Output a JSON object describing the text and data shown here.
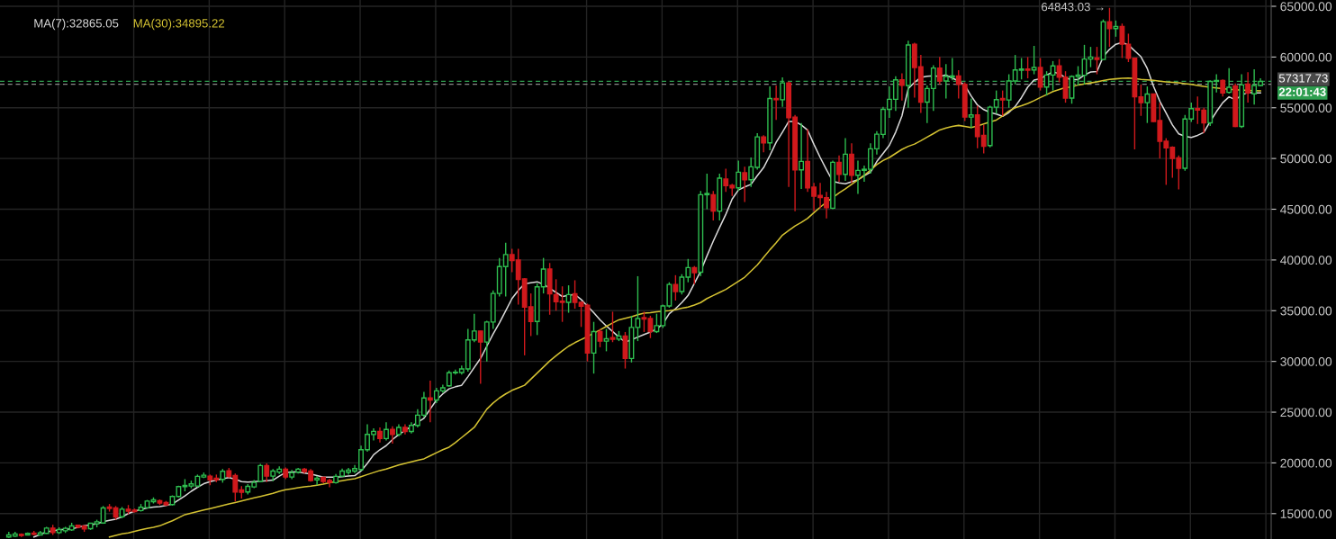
{
  "chart_data": {
    "type": "candlestick",
    "categories": [
      null,
      null,
      null,
      null,
      null,
      null,
      null,
      null,
      null,
      null,
      null,
      null,
      null,
      null,
      null,
      null,
      null,
      null,
      null,
      null,
      null,
      null,
      null,
      null,
      null,
      null,
      null,
      null,
      null,
      null,
      null,
      null,
      null,
      null,
      null,
      null,
      null,
      null,
      null,
      null,
      null,
      null,
      null,
      null,
      null,
      null,
      null,
      null,
      null,
      null,
      null,
      null,
      null,
      null,
      null,
      null,
      null,
      null,
      null,
      null,
      null,
      null,
      null,
      null,
      null,
      null,
      null,
      null,
      null,
      null,
      null,
      null,
      null,
      null,
      null,
      null,
      null,
      null,
      null,
      null,
      null,
      null,
      null,
      null,
      null,
      null,
      null,
      null,
      null,
      null,
      null,
      null,
      null,
      null,
      null,
      null,
      null,
      null,
      null,
      null,
      null,
      null,
      null,
      null,
      null,
      null,
      null,
      null,
      null,
      null,
      null,
      null,
      null,
      null,
      null,
      null,
      null,
      null,
      null,
      null,
      null,
      null,
      null,
      null,
      null,
      null,
      null,
      null,
      null,
      null,
      null,
      null,
      null,
      null,
      null,
      null,
      null,
      null,
      null,
      null,
      null,
      null,
      null,
      null,
      null,
      null,
      null,
      null,
      null,
      null,
      null,
      null,
      null,
      null,
      null,
      null,
      null,
      null,
      null,
      null,
      null,
      null,
      null,
      null,
      null,
      null,
      null,
      null,
      null,
      null,
      null,
      null,
      null,
      null,
      null,
      null,
      null,
      null,
      null,
      null,
      null,
      null,
      null,
      null,
      null,
      null,
      null,
      null,
      null,
      null,
      null,
      null,
      null,
      null,
      null,
      null,
      null,
      null,
      null,
      null
    ],
    "ohlc": [
      [
        12700,
        13200,
        12600,
        12900
      ],
      [
        12780,
        13200,
        12700,
        12990
      ],
      [
        12960,
        13050,
        12700,
        12840
      ],
      [
        12900,
        13150,
        12850,
        13050
      ],
      [
        13080,
        13300,
        12850,
        12960
      ],
      [
        12900,
        13300,
        12850,
        13100
      ],
      [
        13050,
        13700,
        13000,
        13580
      ],
      [
        13580,
        13900,
        12900,
        13130
      ],
      [
        13130,
        13650,
        13000,
        13430
      ],
      [
        13310,
        13700,
        13100,
        13550
      ],
      [
        13400,
        14100,
        13300,
        13790
      ],
      [
        13850,
        13900,
        13550,
        13670
      ],
      [
        13790,
        13820,
        13200,
        13490
      ],
      [
        13520,
        14100,
        13400,
        14050
      ],
      [
        14000,
        14400,
        13650,
        14200
      ],
      [
        14080,
        15750,
        14000,
        15560
      ],
      [
        15650,
        15950,
        15200,
        15500
      ],
      [
        15560,
        15750,
        14400,
        14670
      ],
      [
        14700,
        15650,
        14550,
        15440
      ],
      [
        15440,
        15850,
        14950,
        15240
      ],
      [
        15350,
        15500,
        15100,
        15200
      ],
      [
        15300,
        15950,
        15200,
        15620
      ],
      [
        15590,
        16350,
        15500,
        16240
      ],
      [
        16180,
        16600,
        16000,
        16360
      ],
      [
        16270,
        16400,
        15850,
        16040
      ],
      [
        16100,
        16250,
        15750,
        15860
      ],
      [
        15890,
        16800,
        15800,
        16690
      ],
      [
        16690,
        17750,
        16600,
        17660
      ],
      [
        17660,
        18400,
        17200,
        17780
      ],
      [
        17720,
        18250,
        17500,
        17930
      ],
      [
        17720,
        18850,
        17600,
        18670
      ],
      [
        18610,
        19050,
        18500,
        18790
      ],
      [
        18700,
        18850,
        17800,
        18320
      ],
      [
        18490,
        18850,
        18100,
        18320
      ],
      [
        18380,
        19400,
        18050,
        19170
      ],
      [
        19230,
        19500,
        18500,
        18670
      ],
      [
        18760,
        18950,
        16200,
        17130
      ],
      [
        17340,
        17700,
        16500,
        17100
      ],
      [
        17130,
        17900,
        16900,
        17690
      ],
      [
        17630,
        18300,
        17500,
        18080
      ],
      [
        18170,
        19900,
        18100,
        19740
      ],
      [
        19740,
        19950,
        18100,
        18700
      ],
      [
        18700,
        19400,
        18200,
        19200
      ],
      [
        19100,
        19650,
        18900,
        19380
      ],
      [
        19380,
        19550,
        18400,
        18610
      ],
      [
        18610,
        19300,
        18400,
        19030
      ],
      [
        19100,
        19500,
        18950,
        19380
      ],
      [
        19380,
        19500,
        18950,
        19140
      ],
      [
        19200,
        19400,
        18150,
        18260
      ],
      [
        18320,
        18700,
        17800,
        18490
      ],
      [
        18580,
        18650,
        18000,
        18170
      ],
      [
        18260,
        18450,
        17600,
        18080
      ],
      [
        18050,
        18900,
        17950,
        18670
      ],
      [
        18700,
        19450,
        18600,
        19200
      ],
      [
        19080,
        19500,
        18850,
        19290
      ],
      [
        19200,
        19800,
        19000,
        19440
      ],
      [
        19350,
        21700,
        19200,
        21300
      ],
      [
        21300,
        23800,
        21100,
        22810
      ],
      [
        22800,
        23400,
        22200,
        23110
      ],
      [
        23110,
        23500,
        22000,
        22400
      ],
      [
        22400,
        24000,
        22200,
        23300
      ],
      [
        23300,
        23600,
        21900,
        22800
      ],
      [
        22800,
        23800,
        22600,
        23500
      ],
      [
        23500,
        23800,
        22800,
        23100
      ],
      [
        23100,
        24000,
        22900,
        23700
      ],
      [
        23700,
        25300,
        23500,
        24700
      ],
      [
        24700,
        27000,
        24500,
        26400
      ],
      [
        26400,
        28100,
        24000,
        26200
      ],
      [
        26200,
        27400,
        25900,
        27100
      ],
      [
        27100,
        27700,
        26900,
        27400
      ],
      [
        27600,
        29100,
        27500,
        28880
      ],
      [
        28880,
        29200,
        28700,
        28940
      ],
      [
        28910,
        29600,
        28700,
        29260
      ],
      [
        29260,
        33200,
        29000,
        32120
      ],
      [
        32120,
        34700,
        31900,
        33000
      ],
      [
        33000,
        33000,
        27800,
        31910
      ],
      [
        31910,
        34000,
        30000,
        33880
      ],
      [
        33880,
        37000,
        33200,
        36700
      ],
      [
        36700,
        40200,
        36400,
        39350
      ],
      [
        39350,
        41700,
        36400,
        40530
      ],
      [
        40530,
        41100,
        38800,
        39940
      ],
      [
        40000,
        41100,
        35600,
        38090
      ],
      [
        38140,
        38200,
        30600,
        35350
      ],
      [
        35380,
        36700,
        32500,
        33940
      ],
      [
        33940,
        37700,
        32600,
        37350
      ],
      [
        37350,
        40200,
        36700,
        39110
      ],
      [
        39110,
        39700,
        34600,
        36670
      ],
      [
        36590,
        38100,
        35000,
        35880
      ],
      [
        35940,
        37400,
        33900,
        35820
      ],
      [
        35820,
        37500,
        34800,
        36590
      ],
      [
        36670,
        38000,
        35200,
        35820
      ],
      [
        35820,
        35900,
        33400,
        35440
      ],
      [
        35530,
        35700,
        30000,
        30820
      ],
      [
        30820,
        33900,
        28800,
        32940
      ],
      [
        32940,
        33200,
        31400,
        32000
      ],
      [
        32000,
        33200,
        31000,
        32230
      ],
      [
        32350,
        34900,
        31900,
        32180
      ],
      [
        32200,
        33000,
        32000,
        32500
      ],
      [
        32500,
        32900,
        29300,
        30290
      ],
      [
        30290,
        34500,
        29900,
        33350
      ],
      [
        33350,
        38400,
        32000,
        34230
      ],
      [
        34320,
        34900,
        32900,
        34170
      ],
      [
        34230,
        34500,
        32300,
        32940
      ],
      [
        32940,
        34700,
        32800,
        33530
      ],
      [
        33530,
        35600,
        33300,
        35470
      ],
      [
        35470,
        37800,
        35300,
        37590
      ],
      [
        37590,
        38500,
        36000,
        36890
      ],
      [
        36890,
        38600,
        36600,
        38310
      ],
      [
        38310,
        40100,
        37800,
        39250
      ],
      [
        39250,
        39400,
        37600,
        38750
      ],
      [
        38800,
        46800,
        38400,
        46430
      ],
      [
        46430,
        48500,
        45000,
        46550
      ],
      [
        46430,
        46800,
        43900,
        44810
      ],
      [
        44810,
        48500,
        43900,
        48060
      ],
      [
        47970,
        49000,
        46700,
        47320
      ],
      [
        47350,
        47500,
        46300,
        47110
      ],
      [
        47110,
        49800,
        46800,
        48650
      ],
      [
        48590,
        49200,
        45700,
        47910
      ],
      [
        47910,
        50100,
        47200,
        49180
      ],
      [
        49120,
        52500,
        48900,
        52130
      ],
      [
        52130,
        52300,
        50600,
        51540
      ],
      [
        51540,
        57100,
        50800,
        55910
      ],
      [
        55910,
        57200,
        53800,
        55790
      ],
      [
        55790,
        58000,
        55100,
        57450
      ],
      [
        57450,
        57600,
        47200,
        54020
      ],
      [
        54080,
        54300,
        44800,
        48880
      ],
      [
        48880,
        53500,
        47000,
        49710
      ],
      [
        49710,
        52900,
        46700,
        47110
      ],
      [
        47170,
        47600,
        44800,
        46280
      ],
      [
        46370,
        47600,
        45100,
        46140
      ],
      [
        46140,
        46700,
        44100,
        45160
      ],
      [
        45100,
        49800,
        45000,
        49620
      ],
      [
        49620,
        50300,
        47700,
        48440
      ],
      [
        48440,
        52000,
        47800,
        50420
      ],
      [
        50420,
        51500,
        47600,
        48350
      ],
      [
        48350,
        49800,
        46500,
        48830
      ],
      [
        48830,
        49300,
        47700,
        48940
      ],
      [
        48940,
        51500,
        48500,
        50950
      ],
      [
        50950,
        52700,
        50400,
        52400
      ],
      [
        52370,
        55100,
        52000,
        54850
      ],
      [
        54850,
        57100,
        54000,
        55830
      ],
      [
        55830,
        58100,
        54700,
        57750
      ],
      [
        57750,
        58400,
        55700,
        57210
      ],
      [
        57190,
        61600,
        55000,
        61190
      ],
      [
        61250,
        61400,
        56000,
        58970
      ],
      [
        59030,
        60200,
        54500,
        55560
      ],
      [
        55560,
        57200,
        53500,
        56900
      ],
      [
        56900,
        59200,
        54700,
        58910
      ],
      [
        58910,
        60000,
        57300,
        57640
      ],
      [
        57640,
        59300,
        55900,
        58080
      ],
      [
        58020,
        59900,
        57700,
        58140
      ],
      [
        58140,
        58700,
        55900,
        57310
      ],
      [
        57310,
        57500,
        53700,
        54080
      ],
      [
        54080,
        55900,
        53000,
        54290
      ],
      [
        54290,
        55200,
        51000,
        52160
      ],
      [
        52280,
        53300,
        50500,
        51210
      ],
      [
        51270,
        55200,
        51100,
        55060
      ],
      [
        55060,
        56700,
        54400,
        55800
      ],
      [
        55920,
        56700,
        54200,
        55770
      ],
      [
        55770,
        58300,
        55000,
        57640
      ],
      [
        57640,
        60200,
        57300,
        58730
      ],
      [
        58700,
        59900,
        57800,
        58820
      ],
      [
        58820,
        60000,
        57900,
        58700
      ],
      [
        58730,
        61100,
        58300,
        58970
      ],
      [
        58970,
        59900,
        56700,
        57040
      ],
      [
        57040,
        58600,
        56200,
        58230
      ],
      [
        58230,
        59600,
        56700,
        59120
      ],
      [
        59120,
        59800,
        57500,
        58020
      ],
      [
        58020,
        58600,
        55500,
        55950
      ],
      [
        55950,
        58200,
        55400,
        58080
      ],
      [
        58080,
        59100,
        57200,
        58230
      ],
      [
        58200,
        61200,
        57300,
        59800
      ],
      [
        59800,
        61000,
        59000,
        60000
      ],
      [
        59900,
        61000,
        58300,
        59760
      ],
      [
        59760,
        63700,
        59700,
        63480
      ],
      [
        63480,
        64843.03,
        61000,
        62810
      ],
      [
        62810,
        63600,
        62000,
        63010
      ],
      [
        63010,
        63300,
        59900,
        61260
      ],
      [
        61260,
        62300,
        59500,
        59880
      ],
      [
        59880,
        59900,
        50900,
        56080
      ],
      [
        56080,
        57300,
        54200,
        55500
      ],
      [
        55500,
        57100,
        53500,
        56350
      ],
      [
        56350,
        56400,
        53600,
        53650
      ],
      [
        53740,
        55500,
        50000,
        51700
      ],
      [
        51700,
        52000,
        47400,
        51050
      ],
      [
        51110,
        51200,
        48100,
        50000
      ],
      [
        50060,
        50300,
        46950,
        49040
      ],
      [
        49040,
        54300,
        48800,
        53890
      ],
      [
        53890,
        55500,
        53600,
        54910
      ],
      [
        54910,
        56100,
        53400,
        54770
      ],
      [
        54770,
        55000,
        52500,
        53510
      ],
      [
        53510,
        57700,
        53200,
        57600
      ],
      [
        57600,
        58300,
        56500,
        57690
      ],
      [
        57690,
        57800,
        56100,
        56460
      ],
      [
        56520,
        58900,
        56400,
        57020
      ],
      [
        57160,
        57400,
        53100,
        53160
      ],
      [
        53160,
        58300,
        53000,
        57250
      ],
      [
        57340,
        58500,
        55500,
        56460
      ],
      [
        56370,
        58800,
        55300,
        57190
      ],
      [
        57190,
        57900,
        57100,
        57600
      ]
    ],
    "colors": [
      "#2ebd4f",
      "#2ebd4f",
      "#d0191c",
      "#2ebd4f",
      "#d0191c",
      "#2ebd4f",
      "#2ebd4f",
      "#d0191c",
      "#2ebd4f",
      "#2ebd4f",
      "#2ebd4f",
      "#d0191c",
      "#d0191c",
      "#2ebd4f",
      "#2ebd4f",
      "#2ebd4f",
      "#d0191c",
      "#d0191c",
      "#2ebd4f",
      "#d0191c",
      "#d0191c",
      "#2ebd4f",
      "#2ebd4f",
      "#2ebd4f",
      "#d0191c",
      "#d0191c",
      "#2ebd4f",
      "#2ebd4f",
      "#2ebd4f",
      "#2ebd4f",
      "#2ebd4f",
      "#2ebd4f",
      "#d0191c",
      "#d0191c",
      "#2ebd4f",
      "#d0191c",
      "#d0191c",
      "#d0191c",
      "#2ebd4f",
      "#2ebd4f",
      "#2ebd4f",
      "#d0191c",
      "#2ebd4f",
      "#2ebd4f",
      "#d0191c",
      "#2ebd4f",
      "#2ebd4f",
      "#d0191c",
      "#d0191c",
      "#2ebd4f",
      "#d0191c",
      "#d0191c",
      "#2ebd4f",
      "#2ebd4f",
      "#2ebd4f",
      "#2ebd4f",
      "#2ebd4f",
      "#2ebd4f",
      "#2ebd4f",
      "#d0191c",
      "#2ebd4f",
      "#d0191c",
      "#2ebd4f",
      "#d0191c",
      "#2ebd4f",
      "#2ebd4f",
      "#2ebd4f",
      "#d0191c",
      "#2ebd4f",
      "#2ebd4f",
      "#2ebd4f",
      "#2ebd4f",
      "#2ebd4f",
      "#2ebd4f",
      "#2ebd4f",
      "#d0191c",
      "#2ebd4f",
      "#2ebd4f",
      "#2ebd4f",
      "#2ebd4f",
      "#d0191c",
      "#d0191c",
      "#d0191c",
      "#d0191c",
      "#2ebd4f",
      "#2ebd4f",
      "#d0191c",
      "#d0191c",
      "#d0191c",
      "#2ebd4f",
      "#d0191c",
      "#d0191c",
      "#d0191c",
      "#2ebd4f",
      "#d0191c",
      "#2ebd4f",
      "#d0191c",
      "#2ebd4f",
      "#d0191c",
      "#2ebd4f",
      "#2ebd4f",
      "#d0191c",
      "#d0191c",
      "#2ebd4f",
      "#2ebd4f",
      "#2ebd4f",
      "#d0191c",
      "#2ebd4f",
      "#2ebd4f",
      "#d0191c",
      "#2ebd4f",
      "#2ebd4f",
      "#d0191c",
      "#2ebd4f",
      "#d0191c",
      "#d0191c",
      "#2ebd4f",
      "#d0191c",
      "#2ebd4f",
      "#2ebd4f",
      "#d0191c",
      "#2ebd4f",
      "#d0191c",
      "#2ebd4f",
      "#d0191c",
      "#d0191c",
      "#2ebd4f",
      "#d0191c",
      "#d0191c",
      "#d0191c",
      "#d0191c",
      "#2ebd4f",
      "#d0191c",
      "#2ebd4f",
      "#d0191c",
      "#2ebd4f",
      "#2ebd4f",
      "#2ebd4f",
      "#2ebd4f",
      "#2ebd4f",
      "#2ebd4f",
      "#2ebd4f",
      "#d0191c",
      "#2ebd4f",
      "#d0191c",
      "#d0191c",
      "#2ebd4f",
      "#2ebd4f",
      "#d0191c",
      "#2ebd4f",
      "#2ebd4f",
      "#d0191c",
      "#d0191c",
      "#2ebd4f",
      "#d0191c",
      "#d0191c",
      "#2ebd4f",
      "#2ebd4f",
      "#d0191c",
      "#2ebd4f",
      "#2ebd4f",
      "#2ebd4f",
      "#d0191c",
      "#2ebd4f",
      "#d0191c",
      "#2ebd4f",
      "#2ebd4f",
      "#d0191c",
      "#d0191c",
      "#2ebd4f",
      "#2ebd4f",
      "#2ebd4f",
      "#2ebd4f",
      "#d0191c",
      "#2ebd4f",
      "#d0191c",
      "#2ebd4f",
      "#d0191c",
      "#d0191c",
      "#d0191c",
      "#d0191c",
      "#2ebd4f",
      "#d0191c",
      "#d0191c",
      "#d0191c",
      "#d0191c",
      "#d0191c",
      "#2ebd4f",
      "#2ebd4f",
      "#d0191c",
      "#d0191c",
      "#2ebd4f",
      "#2ebd4f",
      "#d0191c",
      "#2ebd4f",
      "#d0191c",
      "#2ebd4f",
      "#d0191c",
      "#2ebd4f",
      "#2ebd4f"
    ],
    "series": [
      {
        "type": "line",
        "name": "MA(7):32865.05",
        "color": "#d9d9d9",
        "values": [
          null,
          null,
          null,
          null,
          12700,
          12950,
          13200,
          13300,
          13400,
          13450,
          13500,
          13650,
          13800,
          13900,
          14000,
          14200,
          14350,
          14450,
          14700,
          15000,
          15250,
          15400,
          15550,
          15650,
          15700,
          15800,
          15950,
          16350,
          16750,
          17200,
          17600,
          17950,
          18150,
          18300,
          18450,
          18550,
          18400,
          18150,
          18100,
          18150,
          18200,
          18250,
          18300,
          18700,
          19050,
          19100,
          19100,
          19000,
          18900,
          18750,
          18600,
          18600,
          18600,
          18650,
          18700,
          18750,
          19200,
          19950,
          20800,
          21300,
          21700,
          22300,
          22800,
          23200,
          23600,
          24000,
          24400,
          25300,
          26200,
          26800,
          27300,
          27500,
          27650,
          28500,
          29400,
          30300,
          31500,
          32700,
          33800,
          35000,
          36200,
          37000,
          37650,
          37750,
          37850,
          37600,
          37200,
          36800,
          36400,
          36500,
          36600,
          36100,
          35450,
          34800,
          34100,
          33500,
          32950,
          32400,
          31900,
          32150,
          32400,
          32650,
          32900,
          33200,
          33700,
          34700,
          35200,
          35800,
          36500,
          37700,
          38900,
          40400,
          41850,
          43200,
          44500,
          46000,
          46900,
          47200,
          47450,
          48300,
          49100,
          50300,
          51600,
          52600,
          53650,
          53650,
          53300,
          52800,
          51400,
          50100,
          48900,
          47750,
          47600,
          47500,
          47700,
          47900,
          48300,
          48650,
          49700,
          50500,
          51300,
          52600,
          54200,
          56900,
          57500,
          58000,
          58100,
          58140,
          58080,
          58230,
          57930,
          57640,
          57200,
          56160,
          55270,
          54820,
          54530,
          54380,
          54150,
          54530,
          55120,
          56000,
          57040,
          57720,
          57850,
          58230,
          58520,
          58380,
          57930,
          57780,
          57780,
          58230,
          58520,
          58570,
          60030,
          60760,
          61260,
          61430,
          61200,
          60610,
          60030,
          58860,
          57100,
          55640,
          54470,
          53300,
          52430,
          52190,
          52080,
          52280,
          52570,
          53650,
          54620,
          55500,
          56080,
          55790,
          56230,
          56520,
          56460,
          56460
        ]
      },
      {
        "type": "line",
        "name": "MA(30):34895.22",
        "color": "#d4c232",
        "values": [
          null,
          null,
          null,
          null,
          null,
          null,
          null,
          null,
          null,
          null,
          null,
          null,
          null,
          null,
          null,
          null,
          12700,
          12850,
          13000,
          13100,
          13250,
          13400,
          13550,
          13650,
          13800,
          14050,
          14300,
          14600,
          14900,
          15050,
          15200,
          15350,
          15500,
          15650,
          15800,
          15950,
          16100,
          16250,
          16400,
          16550,
          16700,
          16850,
          17000,
          17200,
          17350,
          17450,
          17550,
          17650,
          17700,
          17800,
          17900,
          18050,
          18150,
          18250,
          18350,
          18450,
          18650,
          18850,
          19050,
          19250,
          19400,
          19600,
          19800,
          19950,
          20100,
          20250,
          20400,
          20700,
          21000,
          21300,
          21550,
          22000,
          22500,
          23000,
          23500,
          24400,
          25300,
          25900,
          26400,
          26800,
          27150,
          27400,
          27650,
          28250,
          28850,
          29450,
          30050,
          30550,
          31050,
          31500,
          31850,
          32150,
          32450,
          32800,
          33100,
          33450,
          33800,
          34100,
          34250,
          34400,
          34600,
          34750,
          34800,
          34900,
          34950,
          35000,
          35100,
          35250,
          35350,
          35550,
          35800,
          36200,
          36500,
          36800,
          37100,
          37500,
          37900,
          38300,
          38900,
          39500,
          40250,
          41000,
          41700,
          42450,
          42900,
          43350,
          43700,
          44100,
          44660,
          45200,
          45700,
          46150,
          46600,
          47000,
          47450,
          47900,
          48350,
          48850,
          49400,
          49800,
          50100,
          50500,
          50900,
          51200,
          51420,
          51750,
          52100,
          52450,
          52810,
          53000,
          53150,
          53260,
          53150,
          53050,
          53200,
          53400,
          53600,
          53790,
          54200,
          54680,
          55000,
          55200,
          55420,
          55700,
          56010,
          56300,
          56600,
          56800,
          57000,
          57050,
          57250,
          57350,
          57450,
          57550,
          57690,
          57800,
          57850,
          57900,
          57920,
          57880,
          57800,
          57750,
          57700,
          57620,
          57550,
          57500,
          57460,
          57380,
          57300,
          57200,
          57100,
          57020,
          56950,
          56880,
          56810,
          56770,
          56740,
          56710,
          56690,
          56670
        ]
      }
    ],
    "ylim": [
      12500,
      65620
    ],
    "yticks": [
      {
        "value": 15000,
        "label": "15000.00"
      },
      {
        "value": 20000,
        "label": "20000.00"
      },
      {
        "value": 25000,
        "label": "25000.00"
      },
      {
        "value": 30000,
        "label": "30000.00"
      },
      {
        "value": 35000,
        "label": "35000.00"
      },
      {
        "value": 40000,
        "label": "40000.00"
      },
      {
        "value": 45000,
        "label": "45000.00"
      },
      {
        "value": 50000,
        "label": "50000.00"
      },
      {
        "value": 55000,
        "label": "55000.00"
      },
      {
        "value": 60000,
        "label": "60000.00"
      },
      {
        "value": 65000,
        "label": "65000.00"
      }
    ],
    "grid": true,
    "legend": "top left",
    "annotations": [
      "64843.03 →",
      "22:01:43"
    ],
    "ref_lines": [
      {
        "axis": "y",
        "value": 57317.73,
        "label": "57317.73",
        "color": "#8c8c8c",
        "line_style": "dashed"
      },
      {
        "axis": "y",
        "value": 57600,
        "color": "#2e9e4f",
        "line_style": "dashed"
      }
    ]
  }
}
